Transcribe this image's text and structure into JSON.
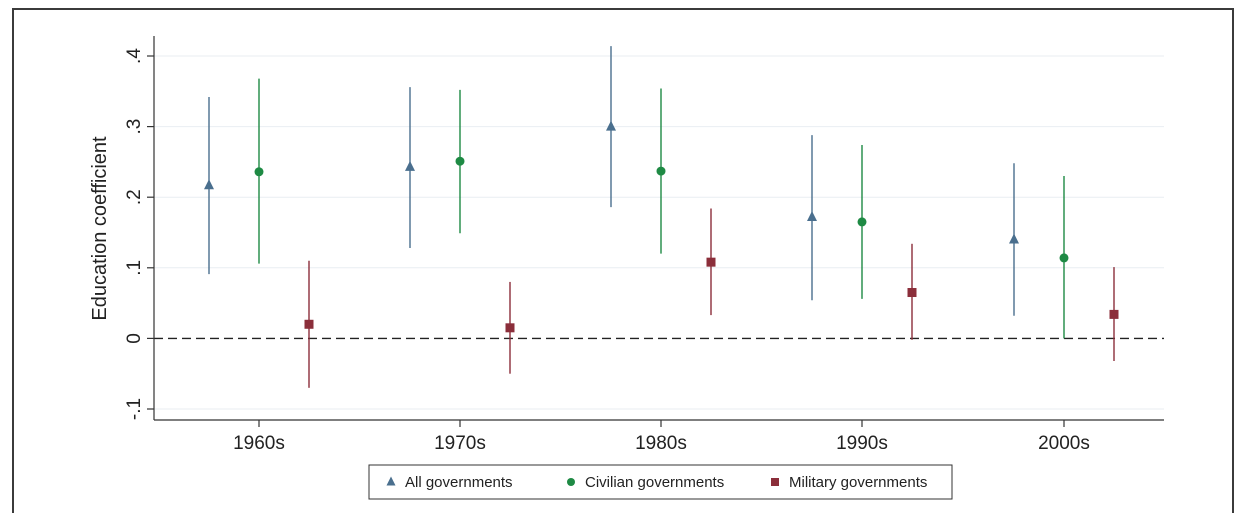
{
  "chart_data": {
    "type": "scatter",
    "ylabel": "Education coefficient",
    "xlabel": "",
    "categories": [
      "1960s",
      "1970s",
      "1980s",
      "1990s",
      "2000s"
    ],
    "ylim": [
      -0.1,
      0.4
    ],
    "yticks": [
      {
        "value": -0.1,
        "label": "-.1"
      },
      {
        "value": 0,
        "label": "0"
      },
      {
        "value": 0.1,
        "label": ".1"
      },
      {
        "value": 0.2,
        "label": ".2"
      },
      {
        "value": 0.3,
        "label": ".3"
      },
      {
        "value": 0.4,
        "label": ".4"
      }
    ],
    "grid": true,
    "reference_line": {
      "value": 0,
      "style": "dashed"
    },
    "legend_position": "bottom",
    "series": [
      {
        "name": "All governments",
        "marker": "triangle",
        "color": "#4a6f8e",
        "values": [
          0.217,
          0.243,
          0.3,
          0.172,
          0.14
        ],
        "ci_low": [
          0.091,
          0.128,
          0.186,
          0.054,
          0.032
        ],
        "ci_high": [
          0.342,
          0.356,
          0.414,
          0.288,
          0.248
        ]
      },
      {
        "name": "Civilian governments",
        "marker": "circle",
        "color": "#1e8a44",
        "values": [
          0.236,
          0.251,
          0.237,
          0.165,
          0.114
        ],
        "ci_low": [
          0.106,
          0.149,
          0.12,
          0.056,
          0.0
        ],
        "ci_high": [
          0.368,
          0.352,
          0.354,
          0.274,
          0.23
        ]
      },
      {
        "name": "Military governments",
        "marker": "square",
        "color": "#8b2e3a",
        "values": [
          0.02,
          0.015,
          0.108,
          0.065,
          0.034
        ],
        "ci_low": [
          -0.07,
          -0.05,
          0.033,
          -0.002,
          -0.032
        ],
        "ci_high": [
          0.11,
          0.08,
          0.184,
          0.134,
          0.101
        ]
      }
    ]
  }
}
